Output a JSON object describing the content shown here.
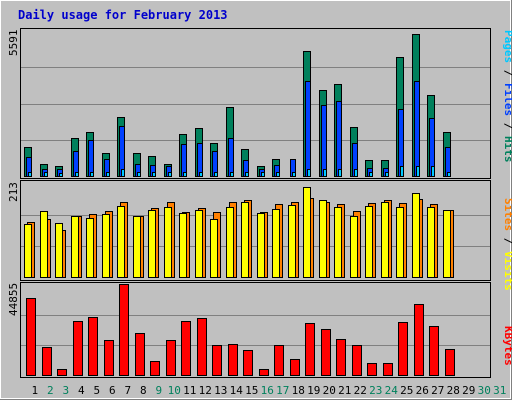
{
  "title": "Daily usage for February 2013",
  "colors": {
    "hits": "#00805c",
    "files": "#0040ff",
    "pages": "#00c8ff",
    "visits": "#ff8000",
    "sites": "#ffff00",
    "kbytes": "#ff0000",
    "weekday_label": "#000000",
    "weekend_label": "#00805c",
    "background": "#c0c0c0"
  },
  "days": [
    "1",
    "2",
    "3",
    "4",
    "5",
    "6",
    "7",
    "8",
    "9",
    "10",
    "11",
    "12",
    "13",
    "14",
    "15",
    "16",
    "17",
    "18",
    "19",
    "20",
    "21",
    "22",
    "23",
    "24",
    "25",
    "26",
    "27",
    "28",
    "29",
    "30",
    "31"
  ],
  "weekend_days": [
    "2",
    "3",
    "9",
    "10",
    "16",
    "17",
    "23",
    "24",
    "30",
    "31"
  ],
  "chart_data": [
    {
      "type": "bar",
      "name": "hits-files-pages",
      "y_max_label": "5591",
      "ylim": [
        0,
        5591
      ],
      "axis_labels": [
        "Pages",
        "Files",
        "Hits"
      ],
      "series": [
        {
          "name": "Hits",
          "values": [
            1160,
            500,
            400,
            1500,
            1700,
            900,
            2300,
            900,
            800,
            500,
            1650,
            1850,
            1300,
            2650,
            1050,
            400,
            700,
            0,
            4800,
            3300,
            3550,
            1900,
            650,
            650,
            4550,
            5450,
            3100,
            1700,
            0,
            0,
            0
          ]
        },
        {
          "name": "Files",
          "values": [
            750,
            300,
            300,
            1000,
            1400,
            700,
            1950,
            500,
            450,
            400,
            1250,
            1300,
            1000,
            1500,
            650,
            300,
            450,
            700,
            3650,
            2750,
            2900,
            1300,
            350,
            350,
            2600,
            3650,
            2250,
            1150,
            0,
            0,
            0
          ]
        },
        {
          "name": "Pages",
          "values": [
            200,
            200,
            150,
            200,
            200,
            200,
            300,
            200,
            200,
            200,
            200,
            200,
            200,
            200,
            200,
            200,
            200,
            200,
            300,
            300,
            300,
            300,
            200,
            200,
            400,
            400,
            400,
            200,
            0,
            0,
            0
          ]
        }
      ]
    },
    {
      "type": "bar",
      "name": "sites-visits",
      "y_max_label": "213",
      "ylim": [
        0,
        213
      ],
      "axis_labels": [
        "Sites",
        "Visits"
      ],
      "series": [
        {
          "name": "Visits",
          "values": [
            125,
            133,
            107,
            140,
            143,
            150,
            170,
            140,
            157,
            170,
            148,
            158,
            148,
            170,
            175,
            148,
            165,
            170,
            180,
            171,
            165,
            150,
            168,
            175,
            168,
            178,
            165,
            152,
            0,
            0,
            0
          ]
        },
        {
          "name": "Sites",
          "values": [
            121,
            150,
            123,
            140,
            135,
            143,
            162,
            138,
            152,
            160,
            146,
            153,
            133,
            160,
            170,
            145,
            155,
            163,
            204,
            175,
            160,
            140,
            162,
            170,
            160,
            190,
            160,
            152,
            0,
            0,
            0
          ]
        }
      ]
    },
    {
      "type": "bar",
      "name": "kbytes",
      "y_max_label": "44855",
      "ylim": [
        0,
        44855
      ],
      "axis_labels": [
        "KBytes"
      ],
      "series": [
        {
          "name": "KBytes",
          "values": [
            38000,
            14000,
            3500,
            27000,
            28600,
            17500,
            44855,
            21000,
            7500,
            17500,
            27000,
            28300,
            15000,
            15500,
            12500,
            3500,
            15000,
            8500,
            26000,
            23000,
            18000,
            15000,
            6500,
            6500,
            26500,
            35000,
            24500,
            13000,
            0,
            0,
            0
          ]
        }
      ]
    }
  ]
}
